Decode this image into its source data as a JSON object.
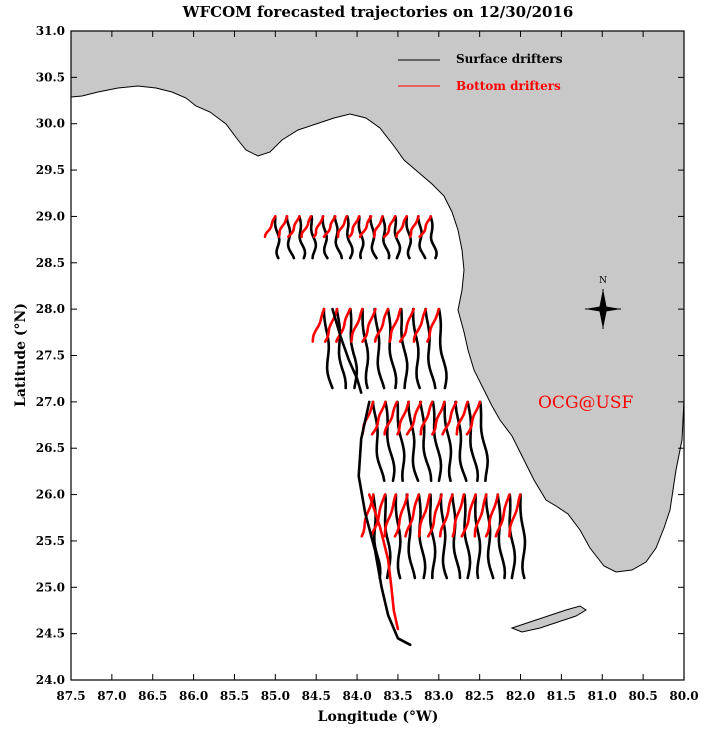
{
  "chart_data": {
    "type": "line",
    "title": "WFCOM forecasted trajectories on 12/30/2016",
    "xlabel": "Longitude (°W)",
    "ylabel": "Latitude (°N)",
    "xlim": [
      87.5,
      80.0
    ],
    "ylim": [
      24.0,
      31.0
    ],
    "x_ticks": [
      "87.5",
      "87.0",
      "86.5",
      "86.0",
      "85.5",
      "85.0",
      "84.5",
      "84.0",
      "83.5",
      "83.0",
      "82.5",
      "82.0",
      "81.5",
      "81.0",
      "80.5",
      "80.0"
    ],
    "y_ticks": [
      "24.0",
      "24.5",
      "25.0",
      "25.5",
      "26.0",
      "26.5",
      "27.0",
      "27.5",
      "28.0",
      "28.5",
      "29.0",
      "29.5",
      "30.0",
      "30.5",
      "31.0"
    ],
    "grid": false,
    "legend": {
      "placement": "top-right",
      "entries": [
        {
          "label": "Surface drifters",
          "color": "#000000"
        },
        {
          "label": "Bottom drifters",
          "color": "#ff0000"
        }
      ]
    },
    "annotation": "OCG@USF",
    "compass_label": "N",
    "land_color": "#c8c8c8",
    "release_rows": [
      {
        "lat": 29.0,
        "lon_start": 85.0,
        "lon_end": 83.1,
        "count": 14,
        "surface_dlon": -0.05,
        "surface_dlat": -0.45,
        "bottom_dlon": 0.12,
        "bottom_dlat": -0.22
      },
      {
        "lat": 28.0,
        "lon_start": 84.4,
        "lon_end": 83.0,
        "count": 10,
        "surface_dlon": -0.08,
        "surface_dlat": -0.85,
        "bottom_dlon": 0.15,
        "bottom_dlat": -0.35
      },
      {
        "lat": 27.0,
        "lon_start": 83.8,
        "lon_end": 82.5,
        "count": 10,
        "surface_dlon": -0.1,
        "surface_dlat": -0.85,
        "bottom_dlon": 0.15,
        "bottom_dlat": -0.35
      },
      {
        "lat": 26.0,
        "lon_start": 83.8,
        "lon_end": 82.0,
        "count": 14,
        "surface_dlon": -0.06,
        "surface_dlat": -0.9,
        "bottom_dlon": 0.15,
        "bottom_dlat": -0.45
      }
    ],
    "long_trajectories": [
      {
        "series": "surface",
        "points": [
          [
            83.85,
            27.0
          ],
          [
            83.95,
            26.6
          ],
          [
            83.98,
            26.2
          ],
          [
            83.9,
            25.8
          ],
          [
            83.78,
            25.4
          ],
          [
            83.7,
            25.0
          ],
          [
            83.62,
            24.7
          ],
          [
            83.5,
            24.45
          ],
          [
            83.35,
            24.38
          ]
        ]
      },
      {
        "series": "surface",
        "points": [
          [
            84.3,
            28.0
          ],
          [
            84.2,
            27.7
          ],
          [
            84.1,
            27.45
          ],
          [
            84.0,
            27.25
          ],
          [
            83.95,
            27.1
          ]
        ]
      },
      {
        "series": "bottom",
        "points": [
          [
            83.85,
            26.0
          ],
          [
            83.72,
            25.65
          ],
          [
            83.62,
            25.3
          ],
          [
            83.58,
            25.0
          ],
          [
            83.55,
            24.75
          ],
          [
            83.5,
            24.55
          ]
        ]
      }
    ]
  }
}
